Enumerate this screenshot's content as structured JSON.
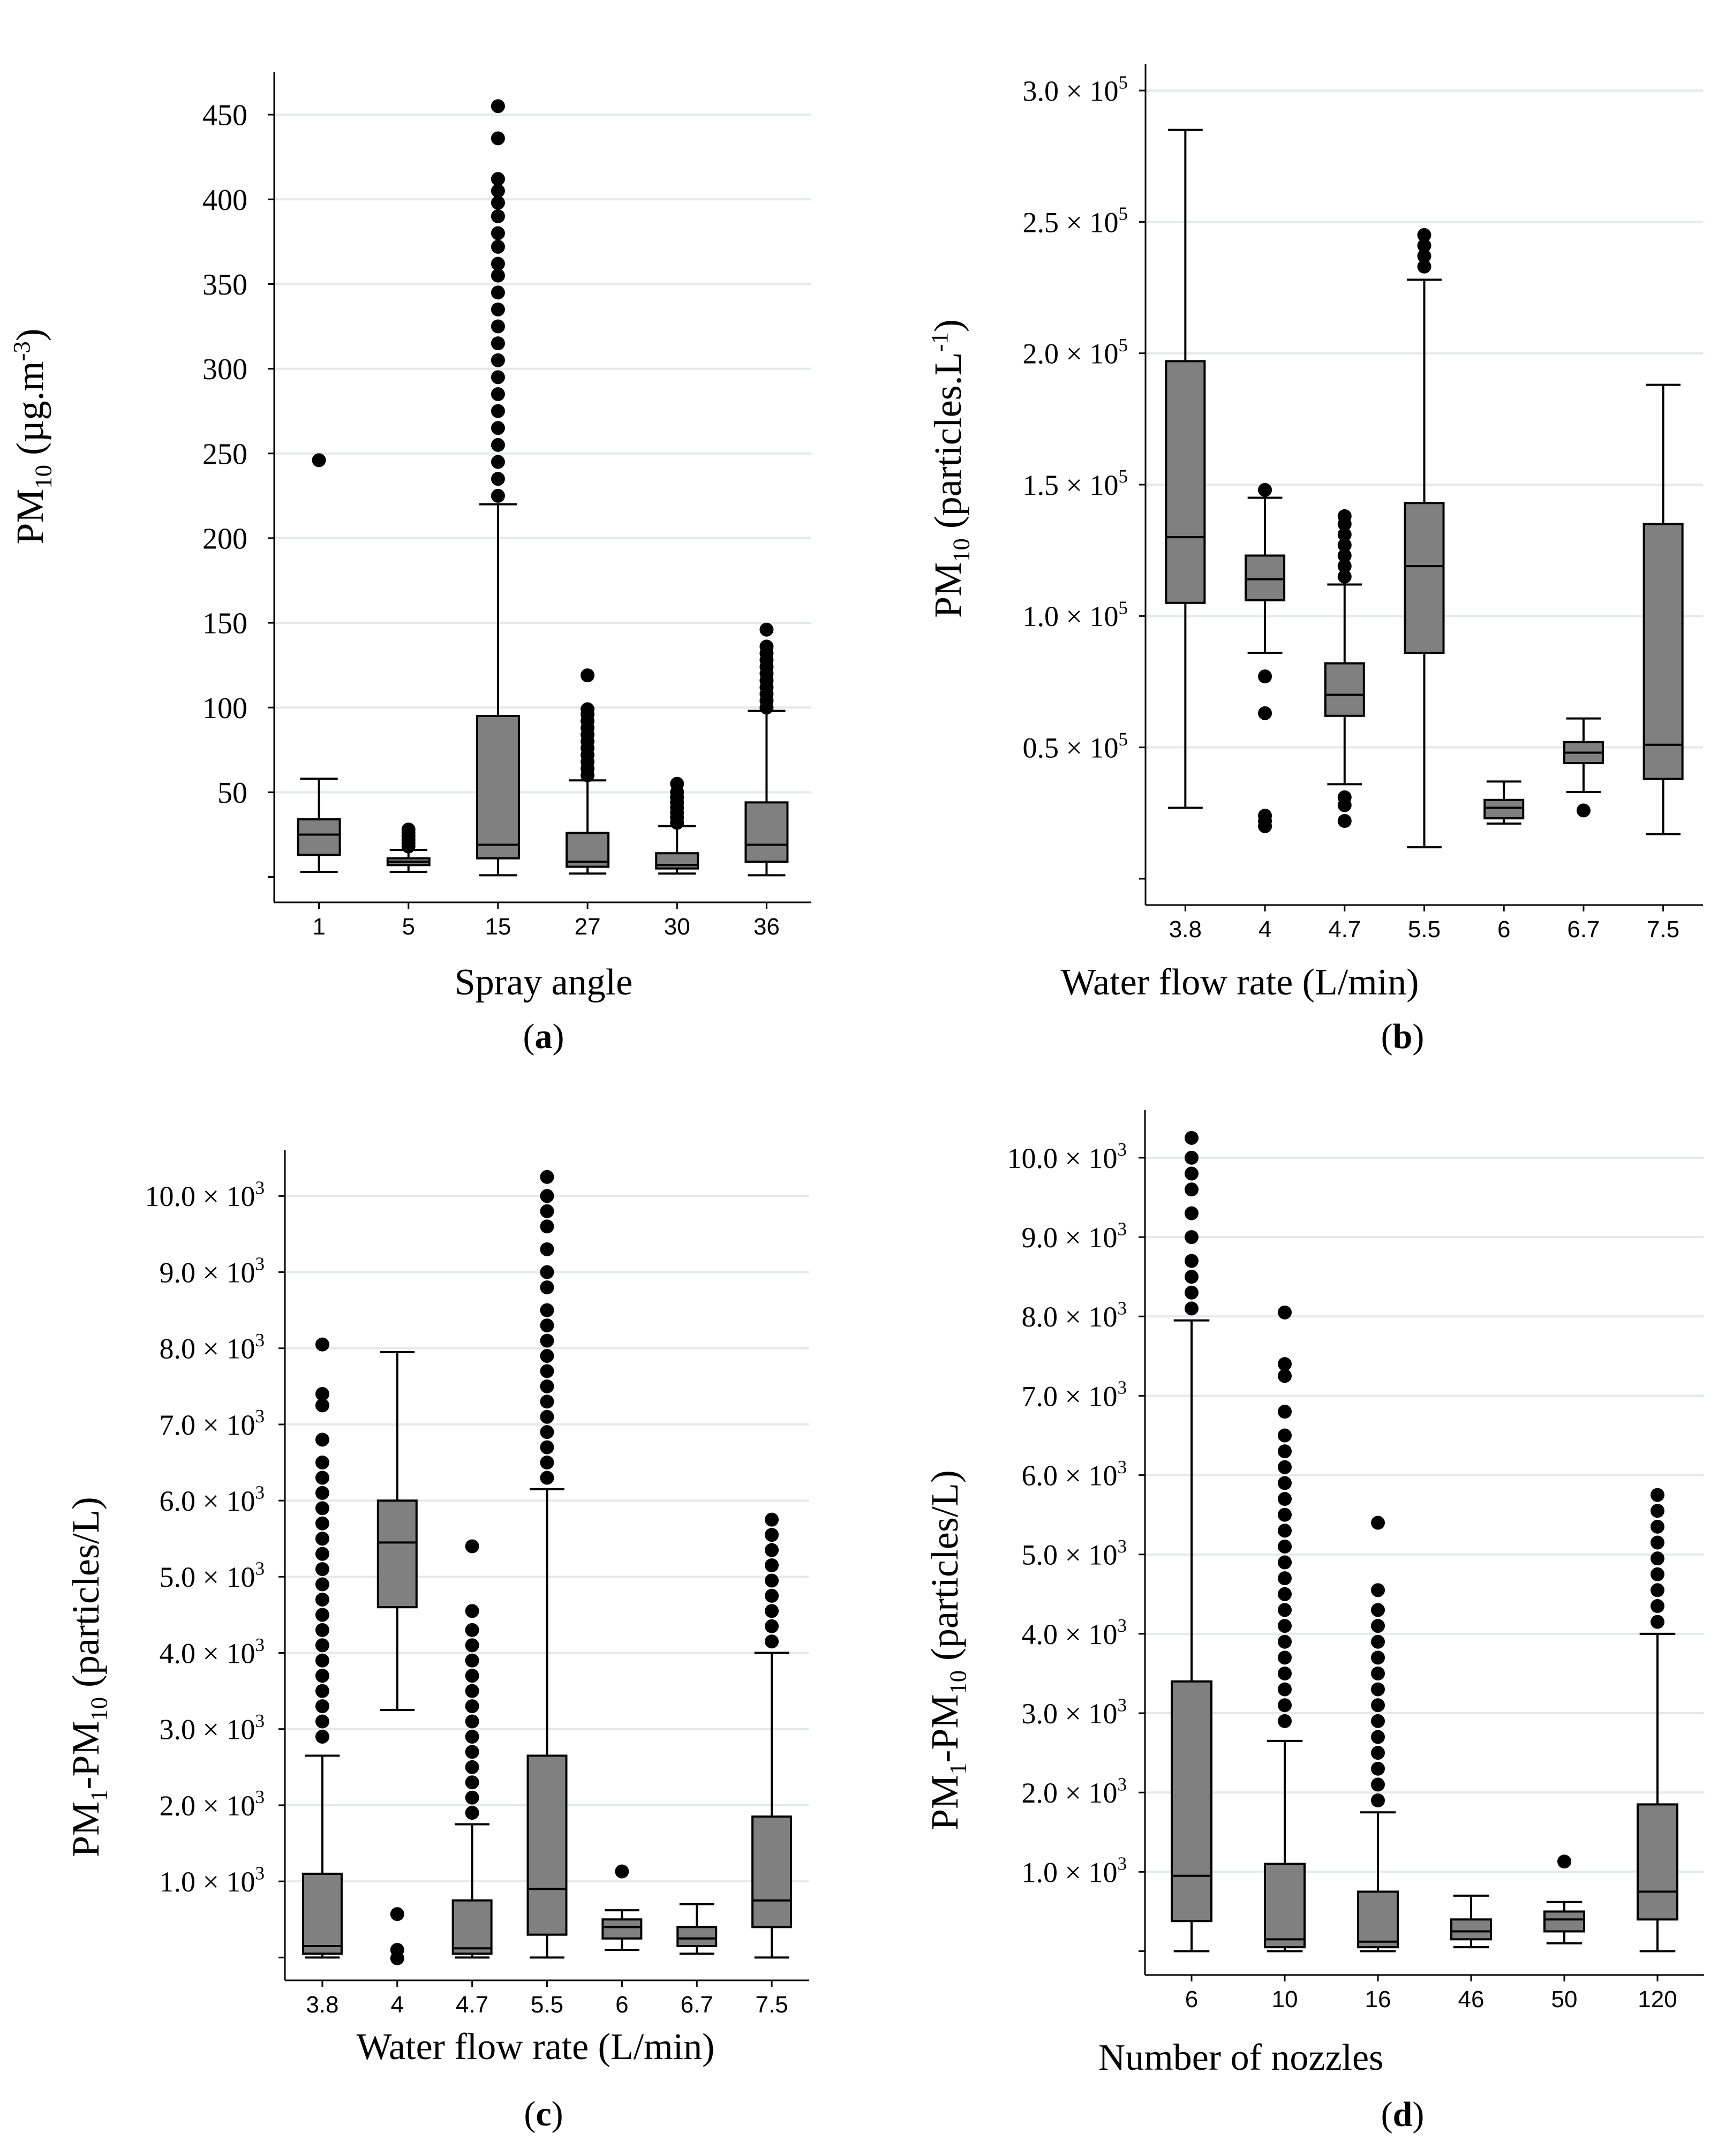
{
  "chart_data": [
    {
      "id": "a",
      "type": "boxplot",
      "caption_letter": "a",
      "ylabel": {
        "prefix": "PM",
        "sub": "10",
        "rest": " (µg.m",
        "sup": "-3",
        "end": ")"
      },
      "xlabel": "Spray angle",
      "ylim": [
        -15,
        475
      ],
      "yticks": [
        {
          "value": 50,
          "label": "50"
        },
        {
          "value": 100,
          "label": "100"
        },
        {
          "value": 150,
          "label": "150"
        },
        {
          "value": 200,
          "label": "200"
        },
        {
          "value": 250,
          "label": "250"
        },
        {
          "value": 300,
          "label": "300"
        },
        {
          "value": 350,
          "label": "350"
        },
        {
          "value": 400,
          "label": "400"
        },
        {
          "value": 450,
          "label": "450"
        }
      ],
      "minor_ticks": [
        0
      ],
      "categories": [
        "1",
        "5",
        "15",
        "27",
        "30",
        "36"
      ],
      "boxes": [
        {
          "whisker_low": 3,
          "q1": 13,
          "median": 25,
          "q3": 34,
          "whisker_high": 58,
          "outliers": [
            246
          ]
        },
        {
          "whisker_low": 3,
          "q1": 7,
          "median": 9,
          "q3": 11,
          "whisker_high": 16,
          "outliers": [
            18,
            20,
            22,
            24,
            26,
            28
          ]
        },
        {
          "whisker_low": 1,
          "q1": 11,
          "median": 19,
          "q3": 95,
          "whisker_high": 220,
          "outliers": [
            225,
            235,
            245,
            255,
            265,
            275,
            285,
            295,
            305,
            315,
            325,
            335,
            345,
            355,
            362,
            372,
            380,
            390,
            398,
            405,
            412,
            436,
            455
          ]
        },
        {
          "whisker_low": 2,
          "q1": 6,
          "median": 9,
          "q3": 26,
          "whisker_high": 57,
          "outliers": [
            60,
            64,
            68,
            72,
            76,
            80,
            84,
            88,
            92,
            96,
            99,
            119
          ]
        },
        {
          "whisker_low": 2,
          "q1": 5,
          "median": 7,
          "q3": 14,
          "whisker_high": 30,
          "outliers": [
            32,
            35,
            38,
            41,
            44,
            47,
            50,
            55
          ]
        },
        {
          "whisker_low": 1,
          "q1": 9,
          "median": 19,
          "q3": 44,
          "whisker_high": 98,
          "outliers": [
            100,
            104,
            108,
            112,
            116,
            120,
            124,
            128,
            132,
            136,
            146
          ]
        }
      ]
    },
    {
      "id": "b",
      "type": "boxplot",
      "caption_letter": "b",
      "ylabel": {
        "prefix": "PM",
        "sub": "10",
        "rest": " (particles.L",
        "sup": "-1",
        "end": ")"
      },
      "xlabel": "Water flow rate (L/min)",
      "ylim": [
        -10000,
        310000
      ],
      "yticks": [
        {
          "value": 50000,
          "label": "0.5 × 10",
          "sup": "5"
        },
        {
          "value": 100000,
          "label": "1.0 × 10",
          "sup": "5"
        },
        {
          "value": 150000,
          "label": "1.5 × 10",
          "sup": "5"
        },
        {
          "value": 200000,
          "label": "2.0 × 10",
          "sup": "5"
        },
        {
          "value": 250000,
          "label": "2.5 × 10",
          "sup": "5"
        },
        {
          "value": 300000,
          "label": "3.0 × 10",
          "sup": "5"
        }
      ],
      "minor_ticks": [
        0
      ],
      "categories": [
        "3.8",
        "4",
        "4.7",
        "5.5",
        "6",
        "6.7",
        "7.5"
      ],
      "boxes": [
        {
          "whisker_low": 27000,
          "q1": 105000,
          "median": 130000,
          "q3": 197000,
          "whisker_high": 285000,
          "outliers": []
        },
        {
          "whisker_low": 86000,
          "q1": 106000,
          "median": 114000,
          "q3": 123000,
          "whisker_high": 145000,
          "outliers": [
            20000,
            22000,
            24000,
            63000,
            77000,
            148000
          ]
        },
        {
          "whisker_low": 36000,
          "q1": 62000,
          "median": 70000,
          "q3": 82000,
          "whisker_high": 112000,
          "outliers": [
            22000,
            28000,
            31000,
            115000,
            119000,
            123000,
            127000,
            131000,
            135000,
            138000
          ]
        },
        {
          "whisker_low": 12000,
          "q1": 86000,
          "median": 119000,
          "q3": 143000,
          "whisker_high": 228000,
          "outliers": [
            233000,
            237000,
            241000,
            245000
          ]
        },
        {
          "whisker_low": 21000,
          "q1": 23000,
          "median": 27000,
          "q3": 30000,
          "whisker_high": 37000,
          "outliers": []
        },
        {
          "whisker_low": 33000,
          "q1": 44000,
          "median": 48000,
          "q3": 52000,
          "whisker_high": 61000,
          "outliers": [
            26000
          ]
        },
        {
          "whisker_low": 17000,
          "q1": 38000,
          "median": 51000,
          "q3": 135000,
          "whisker_high": 188000,
          "outliers": []
        }
      ]
    },
    {
      "id": "c",
      "type": "boxplot",
      "caption_letter": "c",
      "ylabel": {
        "prefix": "PM",
        "sub": "1",
        "mid": "-PM",
        "sub2": "10",
        "rest": " (particles/L)"
      },
      "xlabel": "Water flow rate (L/min)",
      "ylim": [
        -300,
        10600
      ],
      "yticks": [
        {
          "value": 1000,
          "label": "1.0 × 10",
          "sup": "3"
        },
        {
          "value": 2000,
          "label": "2.0 × 10",
          "sup": "3"
        },
        {
          "value": 3000,
          "label": "3.0 × 10",
          "sup": "3"
        },
        {
          "value": 4000,
          "label": "4.0 × 10",
          "sup": "3"
        },
        {
          "value": 5000,
          "label": "5.0 × 10",
          "sup": "3"
        },
        {
          "value": 6000,
          "label": "6.0 × 10",
          "sup": "3"
        },
        {
          "value": 7000,
          "label": "7.0 × 10",
          "sup": "3"
        },
        {
          "value": 8000,
          "label": "8.0 × 10",
          "sup": "3"
        },
        {
          "value": 9000,
          "label": "9.0 × 10",
          "sup": "3"
        },
        {
          "value": 10000,
          "label": "10.0 × 10",
          "sup": "3"
        }
      ],
      "minor_ticks": [
        0
      ],
      "categories": [
        "3.8",
        "4",
        "4.7",
        "5.5",
        "6",
        "6.7",
        "7.5"
      ],
      "boxes": [
        {
          "whisker_low": 0,
          "q1": 50,
          "median": 150,
          "q3": 1100,
          "whisker_high": 2650,
          "outliers": [
            2900,
            3100,
            3300,
            3500,
            3700,
            3900,
            4100,
            4300,
            4500,
            4700,
            4900,
            5100,
            5300,
            5500,
            5700,
            5900,
            6100,
            6300,
            6500,
            6800,
            7250,
            7400,
            8050
          ]
        },
        {
          "whisker_low": 3250,
          "q1": 4600,
          "median": 5450,
          "q3": 6000,
          "whisker_high": 7950,
          "outliers": [
            -10,
            100,
            570
          ]
        },
        {
          "whisker_low": 0,
          "q1": 50,
          "median": 120,
          "q3": 750,
          "whisker_high": 1750,
          "outliers": [
            1900,
            2100,
            2300,
            2500,
            2700,
            2900,
            3100,
            3300,
            3500,
            3700,
            3900,
            4100,
            4300,
            4550,
            5400
          ]
        },
        {
          "whisker_low": 0,
          "q1": 300,
          "median": 900,
          "q3": 2650,
          "whisker_high": 6150,
          "outliers": [
            6300,
            6500,
            6700,
            6900,
            7100,
            7300,
            7500,
            7700,
            7900,
            8100,
            8300,
            8500,
            8800,
            9000,
            9300,
            9600,
            9800,
            10000,
            10250
          ]
        },
        {
          "whisker_low": 100,
          "q1": 250,
          "median": 400,
          "q3": 500,
          "whisker_high": 620,
          "outliers": [
            1130
          ]
        },
        {
          "whisker_low": 50,
          "q1": 150,
          "median": 250,
          "q3": 400,
          "whisker_high": 700,
          "outliers": []
        },
        {
          "whisker_low": 0,
          "q1": 400,
          "median": 750,
          "q3": 1850,
          "whisker_high": 4000,
          "outliers": [
            4150,
            4350,
            4550,
            4750,
            4950,
            5150,
            5350,
            5550,
            5750
          ]
        }
      ]
    },
    {
      "id": "d",
      "type": "boxplot",
      "caption_letter": "d",
      "ylabel": {
        "prefix": "PM",
        "sub": "1",
        "mid": "-PM",
        "sub2": "10",
        "rest": " (particles/L)"
      },
      "xlabel": "Number of nozzles",
      "ylim": [
        -300,
        10600
      ],
      "yticks": [
        {
          "value": 1000,
          "label": "1.0 × 10",
          "sup": "3"
        },
        {
          "value": 2000,
          "label": "2.0 × 10",
          "sup": "3"
        },
        {
          "value": 3000,
          "label": "3.0 × 10",
          "sup": "3"
        },
        {
          "value": 4000,
          "label": "4.0 × 10",
          "sup": "3"
        },
        {
          "value": 5000,
          "label": "5.0 × 10",
          "sup": "3"
        },
        {
          "value": 6000,
          "label": "6.0 × 10",
          "sup": "3"
        },
        {
          "value": 7000,
          "label": "7.0 × 10",
          "sup": "3"
        },
        {
          "value": 8000,
          "label": "8.0 × 10",
          "sup": "3"
        },
        {
          "value": 9000,
          "label": "9.0 × 10",
          "sup": "3"
        },
        {
          "value": 10000,
          "label": "10.0 × 10",
          "sup": "3"
        }
      ],
      "minor_ticks": [
        0
      ],
      "categories": [
        "6",
        "10",
        "16",
        "46",
        "50",
        "120"
      ],
      "boxes": [
        {
          "whisker_low": 0,
          "q1": 380,
          "median": 950,
          "q3": 3400,
          "whisker_high": 7950,
          "outliers": [
            8100,
            8300,
            8500,
            8700,
            9000,
            9300,
            9600,
            9800,
            10000,
            10250
          ]
        },
        {
          "whisker_low": 0,
          "q1": 50,
          "median": 150,
          "q3": 1100,
          "whisker_high": 2650,
          "outliers": [
            2900,
            3100,
            3300,
            3500,
            3700,
            3900,
            4100,
            4300,
            4500,
            4700,
            4900,
            5100,
            5300,
            5500,
            5700,
            5900,
            6100,
            6300,
            6500,
            6800,
            7250,
            7400,
            8050
          ]
        },
        {
          "whisker_low": 0,
          "q1": 50,
          "median": 120,
          "q3": 750,
          "whisker_high": 1750,
          "outliers": [
            1900,
            2100,
            2300,
            2500,
            2700,
            2900,
            3100,
            3300,
            3500,
            3700,
            3900,
            4100,
            4300,
            4550,
            5400
          ]
        },
        {
          "whisker_low": 50,
          "q1": 150,
          "median": 250,
          "q3": 400,
          "whisker_high": 700,
          "outliers": []
        },
        {
          "whisker_low": 100,
          "q1": 250,
          "median": 400,
          "q3": 500,
          "whisker_high": 620,
          "outliers": [
            1130
          ]
        },
        {
          "whisker_low": 0,
          "q1": 400,
          "median": 750,
          "q3": 1850,
          "whisker_high": 4000,
          "outliers": [
            4150,
            4350,
            4550,
            4750,
            4950,
            5150,
            5350,
            5550,
            5750
          ]
        }
      ]
    }
  ],
  "colors": {
    "box_fill": "#808080",
    "stroke": "#000000",
    "grid": "#e4e9e9",
    "outlier": "#000000"
  }
}
